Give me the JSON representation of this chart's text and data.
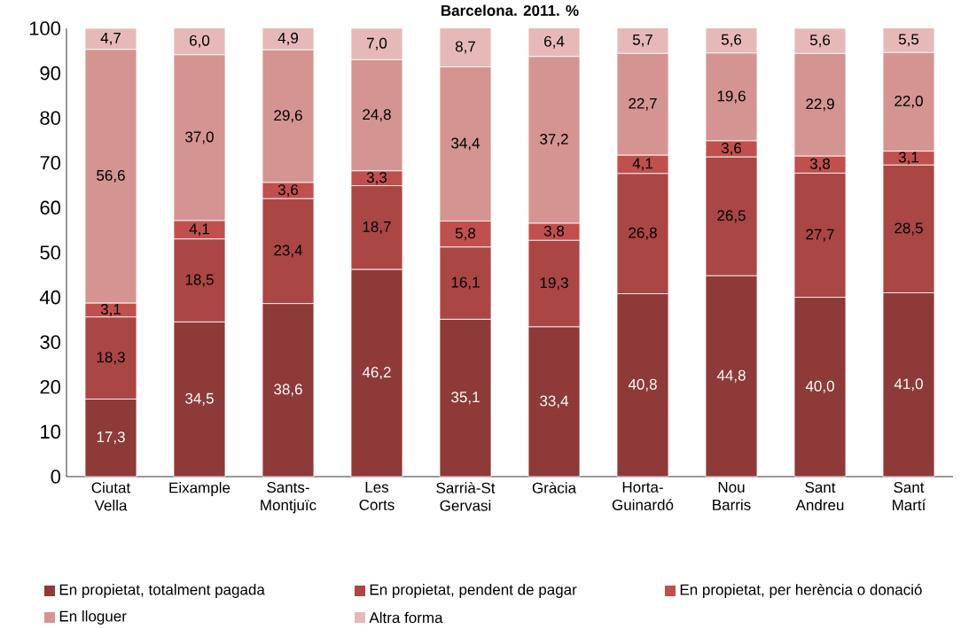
{
  "chart_data": {
    "type": "bar",
    "title": "Barcelona. 2011. %",
    "stacked": true,
    "legend": "bottom",
    "grid": false,
    "categories": [
      "Ciutat Vella",
      "Eixample",
      "Sants-Montjuïc",
      "Les Corts",
      "Sarrià-St Gervasi",
      "Gràcia",
      "Horta-Guinardó",
      "Nou Barris",
      "Sant Andreu",
      "Sant Martí"
    ],
    "ylim": [
      0,
      100
    ],
    "yticks": [
      0,
      10,
      20,
      30,
      40,
      50,
      60,
      70,
      80,
      90,
      100
    ],
    "series": [
      {
        "name": "En propietat, totalment pagada",
        "color": "#8e3a38",
        "values": [
          17.3,
          34.5,
          38.6,
          46.2,
          35.1,
          33.4,
          40.8,
          44.8,
          40.0,
          41.0
        ],
        "value_labels": [
          "17,3",
          "34,5",
          "38,6",
          "46,2",
          "35,1",
          "33,4",
          "40,8",
          "44,8",
          "40,0",
          "41,0"
        ]
      },
      {
        "name": "En propietat, pendent de pagar",
        "color": "#aa4644",
        "values": [
          18.3,
          18.5,
          23.4,
          18.7,
          16.1,
          19.3,
          26.8,
          26.5,
          27.7,
          28.5
        ],
        "value_labels": [
          "18,3",
          "18,5",
          "23,4",
          "18,7",
          "16,1",
          "19,3",
          "26,8",
          "26,5",
          "27,7",
          "28,5"
        ]
      },
      {
        "name": "En propietat, per herència o donació",
        "color": "#c0504d",
        "values": [
          3.1,
          4.1,
          3.6,
          3.3,
          5.8,
          3.8,
          4.1,
          3.6,
          3.8,
          3.1
        ],
        "value_labels": [
          "3,1",
          "4,1",
          "3,6",
          "3,3",
          "5,8",
          "3,8",
          "4,1",
          "3,6",
          "3,8",
          "3,1"
        ]
      },
      {
        "name": "En lloguer",
        "color": "#d49492",
        "values": [
          56.6,
          37.0,
          29.6,
          24.8,
          34.4,
          37.2,
          22.7,
          19.6,
          22.9,
          22.0
        ],
        "value_labels": [
          "56,6",
          "37,0",
          "29,6",
          "24,8",
          "34,4",
          "37,2",
          "22,7",
          "19,6",
          "22,9",
          "22,0"
        ]
      },
      {
        "name": "Altra forma",
        "color": "#e6b9b8",
        "values": [
          4.7,
          6.0,
          4.9,
          7.0,
          8.7,
          6.4,
          5.7,
          5.6,
          5.6,
          5.5
        ],
        "value_labels": [
          "4,7",
          "6,0",
          "4,9",
          "7,0",
          "8,7",
          "6,4",
          "5,7",
          "5,6",
          "5,6",
          "5,5"
        ]
      }
    ]
  }
}
